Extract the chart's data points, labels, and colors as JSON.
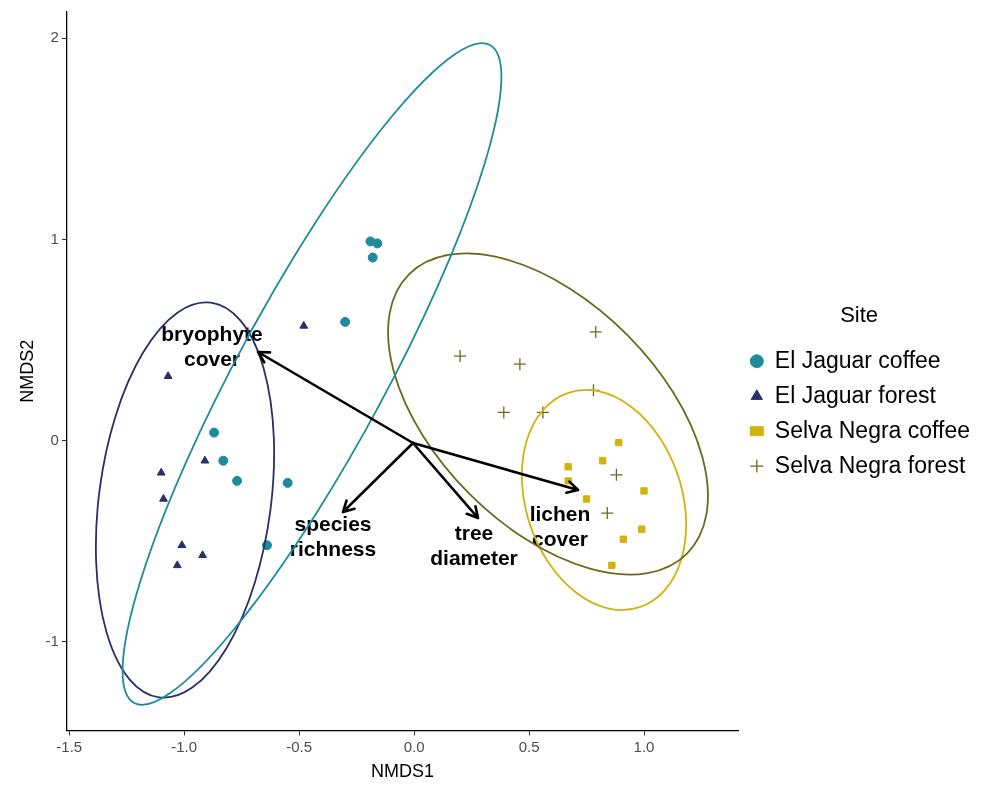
{
  "chart_data": {
    "type": "scatter",
    "xlabel": "NMDS1",
    "ylabel": "NMDS2",
    "legend_title": "Site",
    "legend": "right",
    "grid": false,
    "xlim": [
      -1.51,
      1.41
    ],
    "ylim": [
      -1.44,
      2.13
    ],
    "xticks": [
      {
        "value": -1.5,
        "label": "-1.5"
      },
      {
        "value": -1,
        "label": "-1.0"
      },
      {
        "value": -0.5,
        "label": "-0.5"
      },
      {
        "value": 0,
        "label": "0.0"
      },
      {
        "value": 0.5,
        "label": "0.5"
      },
      {
        "value": 1,
        "label": "1.0"
      }
    ],
    "yticks": [
      -1,
      0,
      1,
      2
    ],
    "series": [
      {
        "name": "El Jaguar coffee",
        "color": "#1c8c9c",
        "marker": "circle",
        "x": [
          -0.19,
          -0.16,
          -0.18,
          -0.3,
          -0.87,
          -0.83,
          -0.77,
          -0.55,
          -0.64
        ],
        "values": [
          0.99,
          0.98,
          0.91,
          0.59,
          0.04,
          -0.1,
          -0.2,
          -0.21,
          -0.52
        ]
      },
      {
        "name": "El Jaguar forest",
        "color": "#27306b",
        "marker": "triangle",
        "x": [
          -0.48,
          -1.07,
          -0.91,
          -1.1,
          -1.09,
          -1.01,
          -0.92,
          -1.03
        ],
        "values": [
          0.57,
          0.32,
          -0.1,
          -0.16,
          -0.29,
          -0.52,
          -0.57,
          -0.62
        ]
      },
      {
        "name": "Selva Negra coffee",
        "color": "#d4b20e",
        "marker": "square",
        "x": [
          0.89,
          0.82,
          0.67,
          0.67,
          0.75,
          1.0,
          0.99,
          0.91,
          0.86
        ],
        "values": [
          -0.01,
          -0.1,
          -0.13,
          -0.2,
          -0.29,
          -0.25,
          -0.44,
          -0.49,
          -0.62
        ]
      },
      {
        "name": "Selva Negra forest",
        "color": "#6b6a1c",
        "marker": "cross",
        "x": [
          0.2,
          0.46,
          0.79,
          0.39,
          0.56,
          0.78,
          0.88,
          0.84
        ],
        "values": [
          0.42,
          0.38,
          0.54,
          0.14,
          0.14,
          0.25,
          -0.17,
          -0.36
        ]
      }
    ],
    "annotations": [
      "bryophyte\ncover",
      "species\nrichness",
      "tree\ndiameter",
      "lichen\ncover"
    ]
  }
}
